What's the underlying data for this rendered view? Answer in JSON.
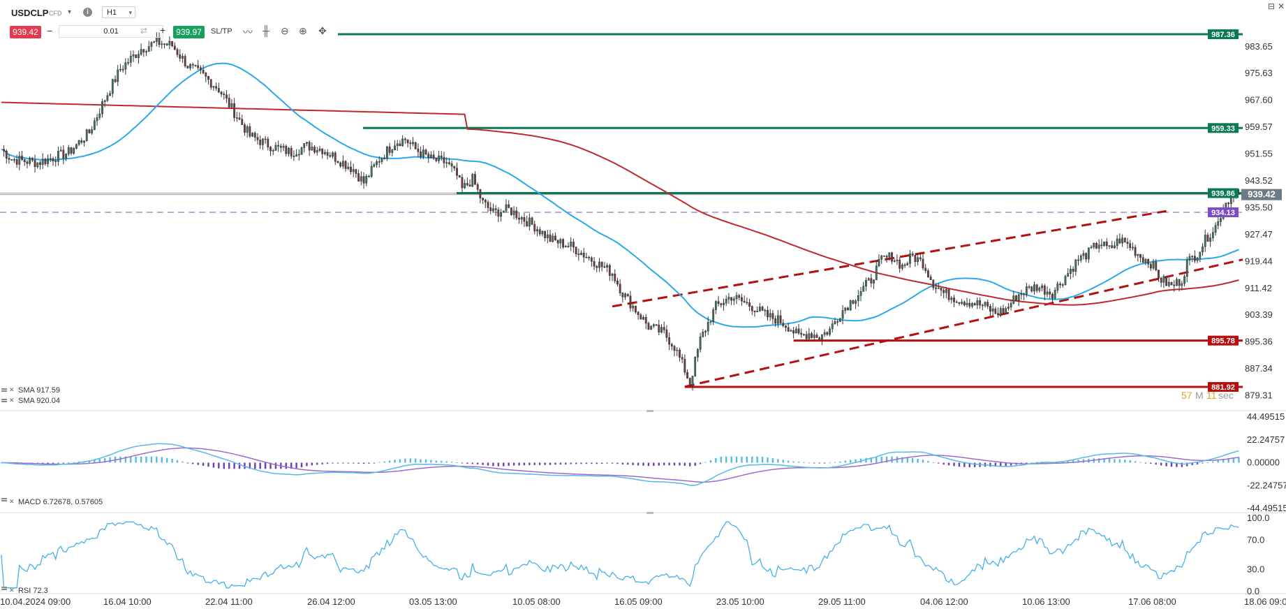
{
  "toolbar": {
    "symbol": "USDCLP",
    "symbol_type": "CFD",
    "info_icon": "info-icon",
    "timeframe": "H1",
    "sell_price": "939.42",
    "quantity": "0.01",
    "buy_price": "939.97",
    "sltp_label": "SL/TP",
    "tools": [
      "line-chart-icon",
      "candlestick-icon",
      "zoom-out-icon",
      "zoom-in-icon",
      "crosshair-icon"
    ],
    "window_controls": [
      "restore-icon",
      "close-icon"
    ]
  },
  "colors": {
    "bull": "#3a7d5b",
    "bear": "#7a3a3a",
    "sma_short": "#29a8ea",
    "sma_long": "#c0272d",
    "green_level": "#0b7a52",
    "red_level": "#b50f0f",
    "dashed_level": "#7b4cc5",
    "current_price": "#6d7b86",
    "macd_signal": "#9a6ccc",
    "macd_line": "#56b8ea",
    "rsi": "#46b1e6"
  },
  "chart_data": [
    {
      "type": "candlestick",
      "symbol": "USDCLP",
      "timeframe": "H1",
      "x_tick_labels": [
        "10.04.2024 09:00",
        "16.04 10:00",
        "22.04 11:00",
        "26.04 12:00",
        "03.05 13:00",
        "10.05 08:00",
        "16.05 09:00",
        "23.05 10:00",
        "29.05 11:00",
        "04.06 12:00",
        "10.06 13:00",
        "17.06 08:00",
        "18.06 09:00"
      ],
      "y_tick_labels": [
        "983.65",
        "975.63",
        "967.60",
        "959.57",
        "951.55",
        "943.52",
        "935.50",
        "927.47",
        "919.44",
        "911.42",
        "903.39",
        "895.36",
        "887.34",
        "879.31"
      ],
      "ylim": [
        876.5,
        990.5
      ],
      "price_tags": [
        {
          "value": 987.36,
          "label": "987.36",
          "color": "green"
        },
        {
          "value": 959.33,
          "label": "959.33",
          "color": "green"
        },
        {
          "value": 939.86,
          "label": "939.86",
          "color": "green"
        },
        {
          "value": 939.42,
          "label": "939.42",
          "color": "current"
        },
        {
          "value": 934.13,
          "label": "934.13",
          "color": "purple"
        },
        {
          "value": 895.78,
          "label": "895.78",
          "color": "red"
        },
        {
          "value": 881.92,
          "label": "881.92",
          "color": "red"
        }
      ],
      "timer": {
        "minutes": "57",
        "m_label": "M",
        "seconds": "11",
        "s_label": "sec"
      },
      "legend": [
        {
          "label": "SMA 917.59",
          "color": "#c0272d"
        },
        {
          "label": "SMA 920.04",
          "color": "#29a8ea"
        }
      ],
      "candle_path": [
        [
          0,
          953
        ],
        [
          4,
          950
        ],
        [
          14,
          949
        ],
        [
          26,
          952
        ],
        [
          34,
          958
        ],
        [
          40,
          968
        ],
        [
          46,
          977
        ],
        [
          54,
          983
        ],
        [
          60,
          985
        ],
        [
          66,
          984
        ],
        [
          72,
          978
        ],
        [
          78,
          975
        ],
        [
          84,
          971
        ],
        [
          90,
          964
        ],
        [
          96,
          957
        ],
        [
          104,
          954
        ],
        [
          112,
          952
        ],
        [
          118,
          954
        ],
        [
          124,
          953
        ],
        [
          130,
          950
        ],
        [
          136,
          947
        ],
        [
          140,
          943
        ],
        [
          146,
          950
        ],
        [
          152,
          955
        ],
        [
          156,
          956
        ],
        [
          160,
          953
        ],
        [
          166,
          950
        ],
        [
          172,
          949
        ],
        [
          176,
          945
        ],
        [
          178,
          941
        ],
        [
          182,
          944
        ],
        [
          186,
          937
        ],
        [
          190,
          934
        ],
        [
          196,
          935
        ],
        [
          202,
          932
        ],
        [
          206,
          930
        ],
        [
          212,
          926
        ],
        [
          220,
          924
        ],
        [
          226,
          921
        ],
        [
          232,
          918
        ],
        [
          236,
          916
        ],
        [
          240,
          910
        ],
        [
          244,
          906
        ],
        [
          250,
          900
        ],
        [
          256,
          898
        ],
        [
          260,
          894
        ],
        [
          264,
          887
        ],
        [
          266,
          883
        ],
        [
          270,
          896
        ],
        [
          276,
          906
        ],
        [
          282,
          909
        ],
        [
          290,
          906
        ],
        [
          296,
          903
        ],
        [
          300,
          902
        ],
        [
          304,
          900
        ],
        [
          308,
          897
        ],
        [
          312,
          898
        ],
        [
          316,
          897
        ],
        [
          320,
          899
        ],
        [
          324,
          904
        ],
        [
          330,
          909
        ],
        [
          336,
          914
        ],
        [
          340,
          920
        ],
        [
          344,
          921
        ],
        [
          348,
          918
        ],
        [
          352,
          921
        ],
        [
          356,
          919
        ],
        [
          360,
          913
        ],
        [
          364,
          910
        ],
        [
          370,
          908
        ],
        [
          376,
          907
        ],
        [
          380,
          906
        ],
        [
          384,
          904
        ],
        [
          388,
          905
        ],
        [
          392,
          909
        ],
        [
          396,
          911
        ],
        [
          400,
          912
        ],
        [
          406,
          910
        ],
        [
          412,
          916
        ],
        [
          416,
          920
        ],
        [
          420,
          922
        ],
        [
          424,
          925
        ],
        [
          428,
          923
        ],
        [
          432,
          926
        ],
        [
          436,
          924
        ],
        [
          440,
          921
        ],
        [
          444,
          919
        ],
        [
          448,
          914
        ],
        [
          452,
          912
        ],
        [
          456,
          914
        ],
        [
          458,
          919
        ],
        [
          462,
          922
        ],
        [
          466,
          927
        ],
        [
          470,
          931
        ],
        [
          472,
          936
        ],
        [
          474,
          938
        ],
        [
          476,
          940
        ],
        [
          478,
          939
        ]
      ]
    },
    {
      "type": "bar",
      "indicator": "MACD",
      "legend": "MACD 6.72678, 0.57605",
      "y_tick_labels": [
        "44.49515",
        "22.24757",
        "0.00000",
        "-22.24757",
        "-44.49515"
      ],
      "ylim": [
        -44.49515,
        44.49515
      ]
    },
    {
      "type": "line",
      "indicator": "RSI",
      "legend": "RSI 72.3",
      "y_tick_labels": [
        "100.0",
        "70.0",
        "30.0",
        "0.0"
      ],
      "ylim": [
        0,
        100
      ]
    }
  ]
}
